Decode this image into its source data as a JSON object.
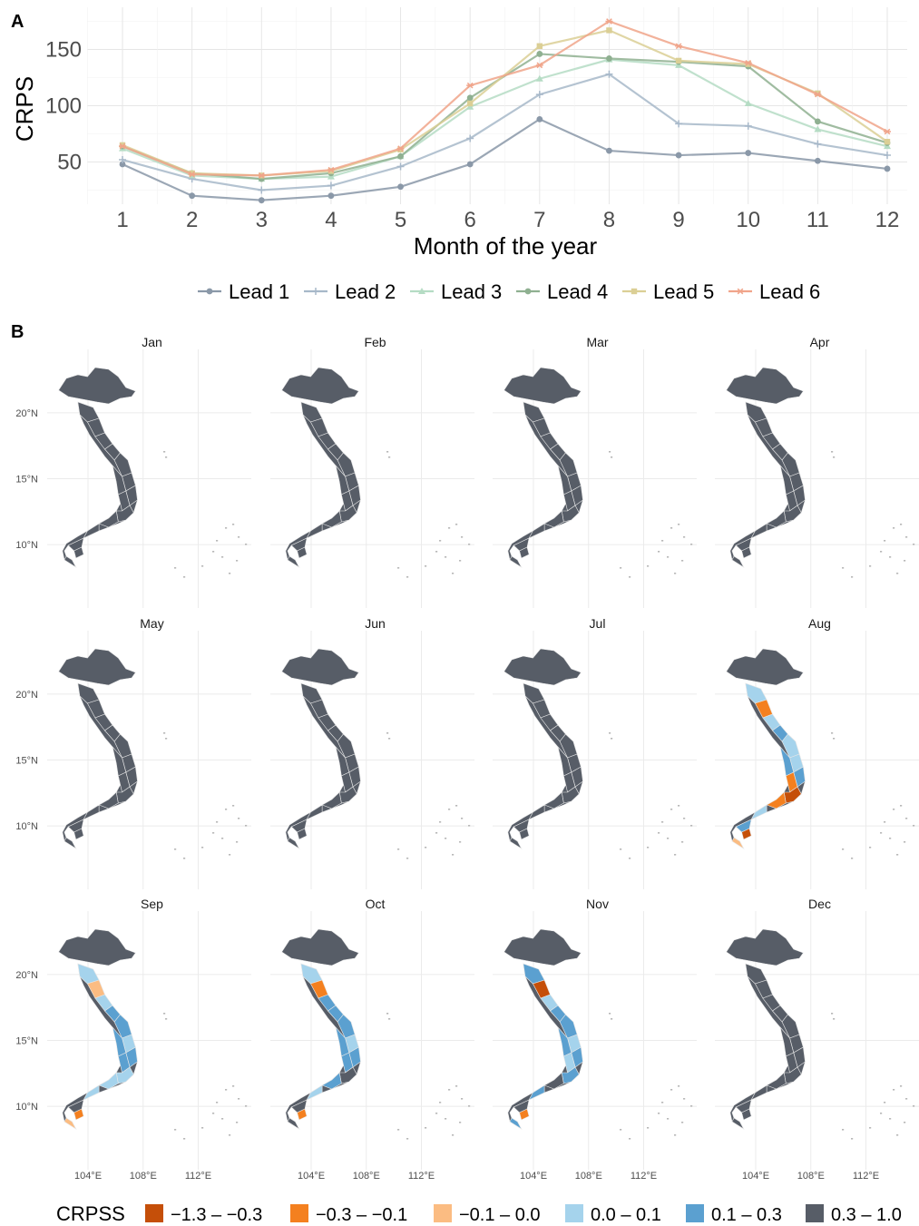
{
  "panel_a": {
    "label": "A",
    "chart_data": {
      "type": "line",
      "xlabel": "Month of the year",
      "ylabel": "CRPS",
      "x": [
        1,
        2,
        3,
        4,
        5,
        6,
        7,
        8,
        9,
        10,
        11,
        12
      ],
      "ylim": [
        25,
        180
      ],
      "yticks": [
        50,
        100,
        150
      ],
      "grid": true,
      "legend_position": "bottom",
      "series": [
        {
          "name": "Lead 1",
          "color": "#8a98a8",
          "marker": "circle",
          "values": [
            48,
            20,
            16,
            20,
            28,
            48,
            88,
            60,
            56,
            58,
            51,
            44
          ]
        },
        {
          "name": "Lead 2",
          "color": "#a7b8c9",
          "marker": "plus",
          "values": [
            52,
            35,
            25,
            29,
            46,
            71,
            110,
            128,
            84,
            82,
            66,
            56
          ]
        },
        {
          "name": "Lead 3",
          "color": "#b5dcc4",
          "marker": "triangle",
          "values": [
            62,
            38,
            35,
            37,
            55,
            99,
            124,
            141,
            136,
            102,
            79,
            64
          ]
        },
        {
          "name": "Lead 4",
          "color": "#8fb091",
          "marker": "circle",
          "values": [
            64,
            40,
            35,
            40,
            55,
            107,
            146,
            142,
            139,
            135,
            86,
            67
          ]
        },
        {
          "name": "Lead 5",
          "color": "#dbcf95",
          "marker": "square",
          "values": [
            65,
            40,
            38,
            42,
            61,
            102,
            153,
            167,
            140,
            137,
            111,
            68
          ]
        },
        {
          "name": "Lead 6",
          "color": "#f0a48a",
          "marker": "star",
          "values": [
            64,
            39,
            38,
            43,
            62,
            118,
            136,
            175,
            153,
            138,
            110,
            77
          ]
        }
      ]
    }
  },
  "panel_b": {
    "label": "B",
    "months": [
      "Jan",
      "Feb",
      "Mar",
      "Apr",
      "May",
      "Jun",
      "Jul",
      "Aug",
      "Sep",
      "Oct",
      "Nov",
      "Dec"
    ],
    "lat_labels": [
      "20°N",
      "15°N",
      "10°N"
    ],
    "lon_labels": [
      "104°E",
      "108°E",
      "112°E"
    ],
    "legend_title": "CRPSS",
    "chart_data": {
      "type": "heatmap",
      "classes": [
        {
          "label": "−1.3 – −0.3",
          "color": "#c54f09"
        },
        {
          "label": "−0.3 – −0.1",
          "color": "#f4801f"
        },
        {
          "label": "−0.1 – 0.0",
          "color": "#fbbc82"
        },
        {
          "label": "0.0 – 0.1",
          "color": "#a5d3ec"
        },
        {
          "label": "0.1 – 0.3",
          "color": "#5ba0d0"
        },
        {
          "label": "0.3 – 1.0",
          "color": "#575d67"
        }
      ],
      "month_dominant_class": {
        "Jan": "0.3 – 1.0",
        "Feb": "0.3 – 1.0",
        "Mar": "0.3 – 1.0",
        "Apr": "0.3 – 1.0",
        "May": "0.3 – 1.0",
        "Jun": "0.3 – 1.0",
        "Jul": "0.3 – 1.0",
        "Aug": "mixed",
        "Sep": "mixed",
        "Oct": "mixed",
        "Nov": "mixed",
        "Dec": "0.3 – 1.0"
      }
    }
  }
}
